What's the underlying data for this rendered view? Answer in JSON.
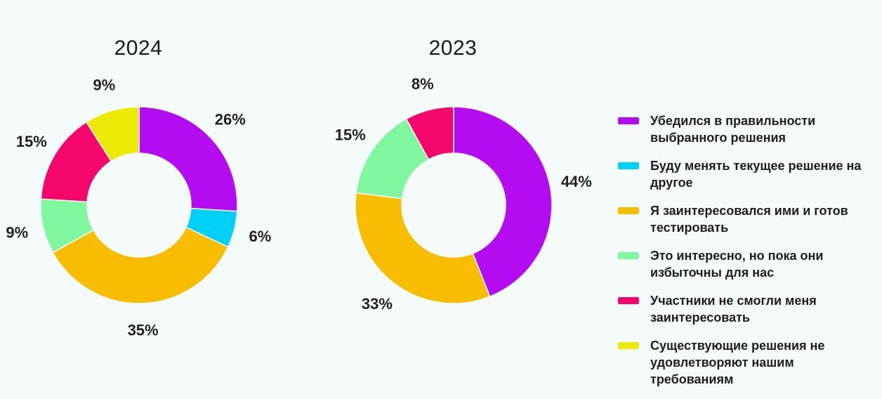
{
  "legend": [
    {
      "label": "Убедился в правильности выбранного решения",
      "color": "#b40cf0"
    },
    {
      "label": "Буду менять текущее решение на другое",
      "color": "#00cff7"
    },
    {
      "label": "Я заинтересовался ими и готов тестировать",
      "color": "#f9bd00"
    },
    {
      "label": "Это интересно, но пока они избыточны для нас",
      "color": "#80f79e"
    },
    {
      "label": "Участники не смогли меня заинтересовать",
      "color": "#f5066a"
    },
    {
      "label": "Существующие решения не удовлетворяют нашим требованиям",
      "color": "#edea07"
    }
  ],
  "chart_data": [
    {
      "type": "pie",
      "title": "2024",
      "values": [
        26,
        6,
        35,
        9,
        15,
        9
      ],
      "labels": [
        "26%",
        "6%",
        "35%",
        "9%",
        "15%",
        "9%"
      ],
      "legend_position": "right"
    },
    {
      "type": "pie",
      "title": "2023",
      "values": [
        44,
        0,
        33,
        15,
        8,
        0
      ],
      "labels": [
        "44%",
        "",
        "33%",
        "15%",
        "8%",
        ""
      ],
      "legend_position": "right"
    }
  ]
}
